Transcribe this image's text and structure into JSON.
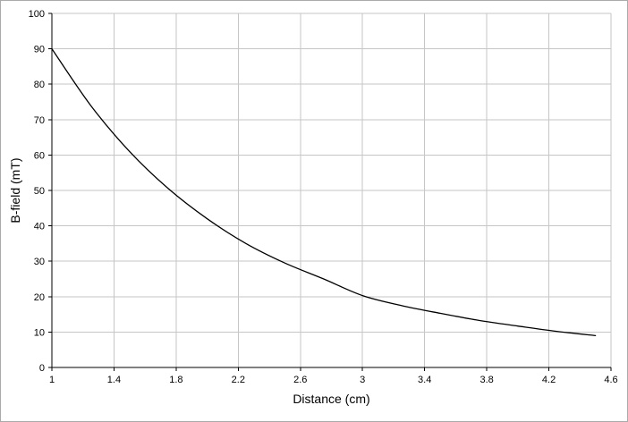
{
  "page": {
    "background": "#ffffff"
  },
  "chart_data": {
    "type": "line",
    "title": "",
    "xlabel": "Distance (cm)",
    "ylabel": "B-field (mT)",
    "xlim": [
      1,
      4.6
    ],
    "ylim": [
      0,
      100
    ],
    "grid": true,
    "legend": "none",
    "x_ticks": [
      1,
      1.4,
      1.8,
      2.2,
      2.6,
      3,
      3.4,
      3.8,
      4.2,
      4.6
    ],
    "x_tick_labels": [
      "1",
      "1.4",
      "1.8",
      "2.2",
      "2.6",
      "3",
      "3.4",
      "3.8",
      "4.2",
      "4.6"
    ],
    "y_ticks": [
      0,
      10,
      20,
      30,
      40,
      50,
      60,
      70,
      80,
      90,
      100
    ],
    "y_tick_labels": [
      "0",
      "10",
      "20",
      "30",
      "40",
      "50",
      "60",
      "70",
      "80",
      "90",
      "100"
    ],
    "colors": {
      "grid": "#c6c6c6",
      "axis": "#000000",
      "line": "#000000",
      "text": "#000000"
    },
    "series": [
      {
        "name": "B-field",
        "x": [
          1.0,
          1.25,
          1.5,
          1.75,
          2.0,
          2.25,
          2.5,
          2.75,
          3.0,
          3.25,
          3.5,
          3.75,
          4.0,
          4.25,
          4.5
        ],
        "y": [
          90,
          74,
          61,
          50.5,
          42,
          35,
          29.5,
          25,
          20.3,
          17.5,
          15.3,
          13.3,
          11.7,
          10.2,
          9
        ]
      }
    ]
  }
}
